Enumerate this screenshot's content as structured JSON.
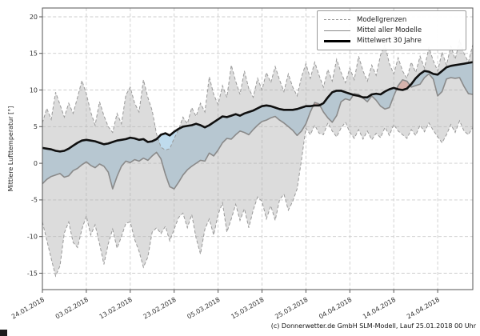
{
  "figure": {
    "caption": "(c) Donnerwetter.de GmbH SLM-Modell, Lauf 25.01.2018 00 Uhr"
  },
  "legend": {
    "items": [
      {
        "label": "Modellgrenzen",
        "style": "dashed-gray"
      },
      {
        "label": "Mittel aller Modelle",
        "style": "solid-gray"
      },
      {
        "label": "Mittelwert 30 Jahre",
        "style": "solid-black-thick"
      }
    ]
  },
  "colors": {
    "cold_fill": "#bfdbed",
    "warm_fill": "#f3b7ad",
    "range_fill": "rgba(172,172,172,0.42)",
    "range_border": "#999999",
    "model_mean_line": "#8a8a8a",
    "climate_mean_line": "#0f0f0f",
    "grid": "#cccccc",
    "spine": "#555555",
    "tick_text": "#333333"
  },
  "chart_data": {
    "type": "line",
    "title": "",
    "xlabel": "",
    "ylabel": "Mittlere Lufttemperatur [°]",
    "ylim": [
      -17.3,
      21.3
    ],
    "yticks": [
      20,
      15,
      10,
      5,
      0,
      -5,
      -10,
      -15
    ],
    "xtick_days": [
      0,
      10,
      20,
      30,
      40,
      50,
      60,
      70,
      80,
      90
    ],
    "xtick_labels": [
      "24.01.2018",
      "03.02.2018",
      "13.02.2018",
      "23.02.2018",
      "05.03.2018",
      "15.03.2018",
      "25.03.2018",
      "04.04.2018",
      "14.04.2018",
      "24.04.2018"
    ],
    "grid": true,
    "legend_position": "top-right",
    "start_date": "24.01.2018",
    "n_days": 99,
    "fills": {
      "cold": "model mean below 30-year mean (blue)",
      "warm": "model mean above 30-year mean (red)",
      "range": "model min-max envelope (gray, dashed borders)"
    },
    "series": [
      {
        "name": "Modellgrenzen (oben)",
        "role": "upper_bound",
        "values": [
          5.5,
          7.5,
          6.0,
          9.7,
          8.0,
          6.3,
          8.2,
          6.8,
          9.0,
          11.3,
          9.5,
          7.0,
          5.2,
          8.4,
          6.5,
          5.0,
          4.2,
          6.8,
          5.4,
          9.3,
          10.4,
          8.2,
          7.0,
          11.4,
          9.0,
          7.2,
          4.0,
          2.2,
          1.8,
          2.0,
          3.4,
          4.6,
          6.3,
          5.4,
          7.6,
          6.4,
          8.2,
          7.0,
          11.8,
          9.4,
          8.0,
          10.6,
          9.0,
          13.4,
          11.2,
          9.4,
          12.6,
          10.2,
          9.0,
          11.6,
          10.0,
          12.4,
          11.0,
          13.2,
          11.4,
          9.8,
          12.2,
          10.4,
          9.2,
          11.8,
          13.6,
          11.6,
          13.8,
          12.0,
          10.4,
          12.8,
          11.2,
          14.2,
          12.4,
          11.0,
          13.0,
          11.4,
          14.6,
          12.6,
          11.2,
          13.4,
          12.0,
          14.8,
          16.2,
          13.6,
          12.2,
          14.4,
          12.6,
          11.6,
          13.8,
          12.4,
          14.6,
          13.0,
          15.8,
          14.0,
          12.6,
          15.2,
          13.4,
          16.0,
          14.2,
          16.8,
          15.0,
          13.8,
          16.2
        ]
      },
      {
        "name": "Modellgrenzen (unten)",
        "role": "lower_bound",
        "values": [
          -8.0,
          -10.5,
          -13.0,
          -15.4,
          -14.0,
          -9.5,
          -8.0,
          -10.8,
          -11.5,
          -9.0,
          -7.2,
          -9.8,
          -8.4,
          -11.0,
          -13.8,
          -11.0,
          -9.0,
          -11.6,
          -10.0,
          -8.2,
          -8.0,
          -10.4,
          -12.0,
          -14.2,
          -12.8,
          -9.4,
          -8.8,
          -9.6,
          -8.6,
          -10.6,
          -9.0,
          -7.4,
          -6.8,
          -8.8,
          -7.0,
          -10.2,
          -12.4,
          -9.0,
          -7.6,
          -9.8,
          -7.0,
          -5.4,
          -9.4,
          -7.6,
          -5.6,
          -7.8,
          -6.2,
          -8.8,
          -6.4,
          -4.6,
          -5.2,
          -7.6,
          -5.8,
          -7.8,
          -5.0,
          -4.2,
          -6.4,
          -5.2,
          -3.5,
          0.5,
          4.8,
          3.9,
          5.2,
          4.1,
          3.9,
          5.5,
          4.4,
          3.6,
          4.8,
          5.6,
          4.2,
          3.4,
          4.6,
          3.3,
          4.4,
          3.2,
          4.1,
          3.5,
          4.9,
          3.8,
          5.3,
          4.4,
          3.9,
          3.4,
          4.6,
          3.8,
          5.2,
          4.3,
          5.5,
          4.5,
          3.6,
          2.8,
          3.9,
          5.3,
          4.2,
          5.8,
          4.4,
          3.9,
          4.9
        ]
      },
      {
        "name": "Mittel aller Modelle",
        "role": "model_mean",
        "values": [
          -2.8,
          -2.2,
          -1.8,
          -1.6,
          -1.4,
          -1.9,
          -1.7,
          -1.0,
          -0.7,
          -0.2,
          0.2,
          -0.3,
          -0.6,
          -0.1,
          -0.4,
          -1.2,
          -3.5,
          -1.8,
          -0.4,
          0.3,
          0.1,
          0.5,
          0.3,
          0.7,
          0.4,
          1.0,
          1.5,
          0.6,
          -1.5,
          -3.2,
          -3.5,
          -2.6,
          -1.6,
          -0.9,
          -0.4,
          0.0,
          0.4,
          0.3,
          1.4,
          1.0,
          1.8,
          2.8,
          3.4,
          3.3,
          3.9,
          4.4,
          4.2,
          3.9,
          4.6,
          5.2,
          5.7,
          5.9,
          6.2,
          6.4,
          5.9,
          5.5,
          5.0,
          4.5,
          3.8,
          4.4,
          5.4,
          7.0,
          8.3,
          8.1,
          7.0,
          6.2,
          5.6,
          6.5,
          8.4,
          8.8,
          8.6,
          9.5,
          9.4,
          8.9,
          8.4,
          9.2,
          8.6,
          7.8,
          7.4,
          7.6,
          9.2,
          10.6,
          11.4,
          11.2,
          10.4,
          10.6,
          10.8,
          11.7,
          12.2,
          11.5,
          9.2,
          9.8,
          11.5,
          11.7,
          11.6,
          11.7,
          10.5,
          9.5,
          9.4
        ]
      },
      {
        "name": "Mittelwert 30 Jahre",
        "role": "climate_mean",
        "values": [
          2.1,
          2.0,
          1.9,
          1.7,
          1.6,
          1.7,
          2.0,
          2.4,
          2.8,
          3.1,
          3.2,
          3.1,
          3.0,
          2.8,
          2.6,
          2.7,
          2.9,
          3.1,
          3.2,
          3.3,
          3.5,
          3.4,
          3.2,
          3.3,
          2.9,
          3.0,
          3.3,
          3.9,
          4.1,
          3.8,
          4.3,
          4.7,
          5.0,
          5.1,
          5.2,
          5.4,
          5.2,
          4.9,
          5.2,
          5.6,
          6.0,
          6.4,
          6.3,
          6.5,
          6.7,
          6.5,
          6.8,
          7.0,
          7.2,
          7.5,
          7.8,
          7.9,
          7.8,
          7.6,
          7.4,
          7.3,
          7.3,
          7.3,
          7.4,
          7.6,
          7.8,
          7.8,
          7.9,
          7.9,
          8.2,
          9.0,
          9.7,
          9.9,
          9.9,
          9.7,
          9.5,
          9.3,
          9.2,
          9.0,
          9.0,
          9.4,
          9.5,
          9.4,
          9.8,
          10.1,
          10.3,
          10.1,
          10.0,
          10.2,
          10.8,
          11.6,
          12.2,
          12.6,
          12.5,
          12.2,
          12.1,
          12.6,
          13.1,
          13.3,
          13.4,
          13.5,
          13.6,
          13.7,
          13.8
        ]
      }
    ]
  }
}
